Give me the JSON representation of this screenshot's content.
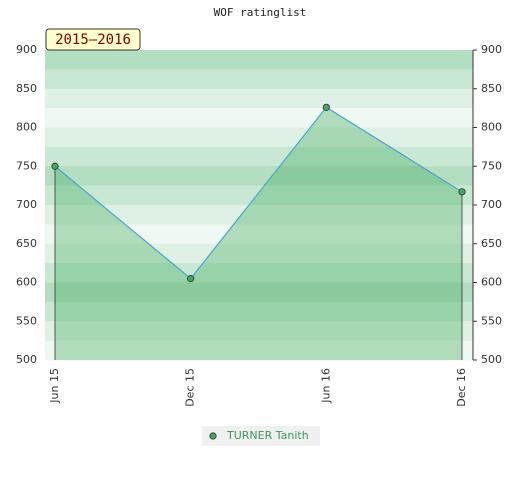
{
  "chart_data": {
    "type": "line",
    "title": "WOF ratinglist",
    "annotation": "2015–2016",
    "categories": [
      "Jun 15",
      "Dec 15",
      "Jun 16",
      "Dec 16"
    ],
    "series": [
      {
        "name": "TURNER Tanith",
        "color": "#4aa3d6",
        "values": [
          750,
          605,
          826,
          717
        ]
      }
    ],
    "ylim": [
      500,
      900
    ],
    "yticks": [
      500,
      550,
      600,
      650,
      700,
      750,
      800,
      850,
      900
    ]
  }
}
